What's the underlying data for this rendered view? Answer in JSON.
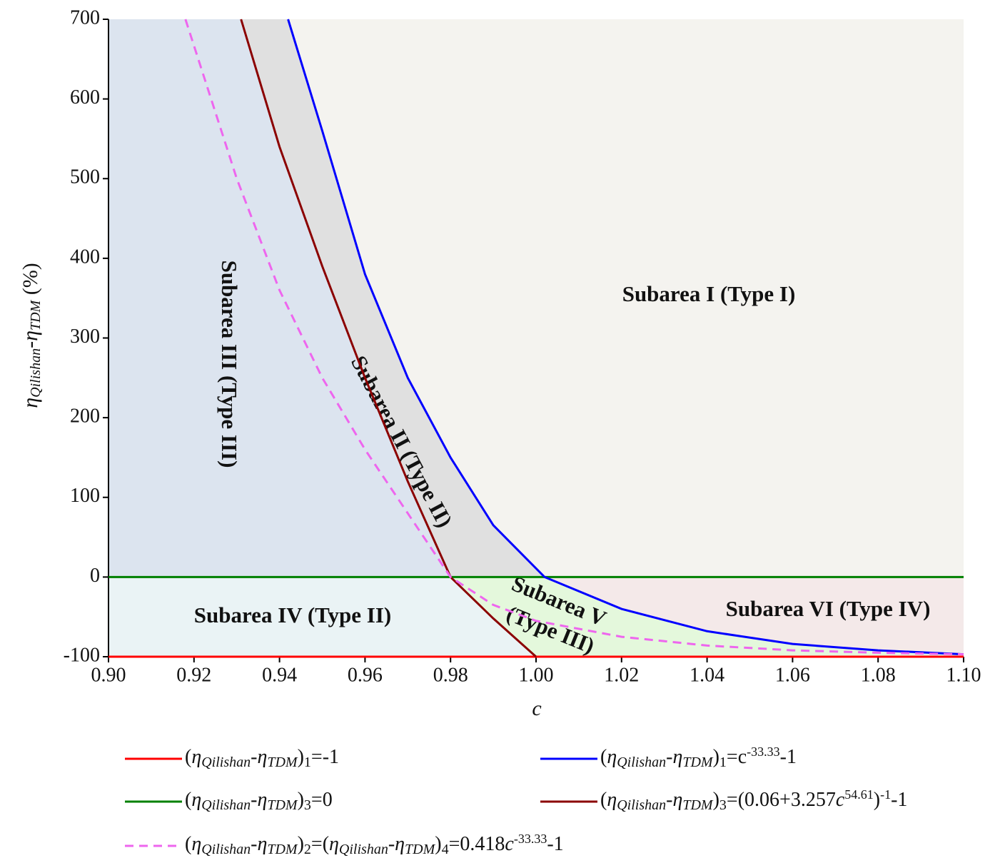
{
  "chart_data": {
    "type": "line",
    "x_label": "c",
    "y_label": "ηQilishan-ηTDM (%)",
    "xlim": [
      0.9,
      1.1
    ],
    "ylim": [
      -100,
      700
    ],
    "xticks": [
      {
        "value": 0.9,
        "label": "0.90"
      },
      0.92,
      0.94,
      0.96,
      0.98,
      {
        "value": 1.0,
        "label": "1.00"
      },
      1.02,
      1.04,
      1.06,
      1.08,
      {
        "value": 1.1,
        "label": "1.10"
      }
    ],
    "yticks": [
      -100,
      0,
      100,
      200,
      300,
      400,
      500,
      600,
      700
    ],
    "series": [
      {
        "name": "(ηQilishan-ηTDM)1=-1",
        "color": "#ff0000",
        "x": [
          0.9,
          1.1
        ],
        "values": [
          -100,
          -100
        ]
      },
      {
        "name": "(ηQilishan-ηTDM)1=c-33.33-1",
        "color": "#0000ff",
        "x": [
          0.942,
          0.95,
          0.96,
          0.97,
          0.98,
          0.99,
          1.002,
          1.02,
          1.04,
          1.06,
          1.08,
          1.1
        ],
        "values": [
          700,
          560,
          380,
          250,
          150,
          65,
          0,
          -40,
          -68,
          -84,
          -92,
          -97
        ]
      },
      {
        "name": "(ηQilishan-ηTDM)3=0",
        "color": "#008000",
        "x": [
          0.9,
          1.1
        ],
        "values": [
          0,
          0
        ]
      },
      {
        "name": "(ηQilishan-ηTDM)3=(0.06+3.257c54.61)-1-1",
        "color": "#8b0000",
        "x": [
          0.931,
          0.94,
          0.95,
          0.96,
          0.97,
          0.98,
          0.99,
          1.0
        ],
        "values": [
          700,
          540,
          390,
          250,
          120,
          0,
          -52,
          -100
        ]
      },
      {
        "name": "(ηQilishan-ηTDM)2=(ηQilishan-ηTDM)4=0.418c-33.33-1",
        "color": "#ee66ee",
        "dashed": true,
        "x": [
          0.918,
          0.93,
          0.94,
          0.95,
          0.96,
          0.97,
          0.98,
          0.99,
          1.0,
          1.02,
          1.04,
          1.06,
          1.08,
          1.1
        ],
        "values": [
          700,
          500,
          360,
          250,
          160,
          80,
          0,
          -35,
          -55,
          -75,
          -86,
          -92,
          -95,
          -97
        ]
      }
    ],
    "annotations": [
      "Subarea I (Type I)",
      "Subarea II (Type II)",
      "Subarea III (Type III)",
      "Subarea IV (Type II)",
      "Subarea V",
      "(Type III)",
      "Subarea VI (Type IV)"
    ]
  }
}
